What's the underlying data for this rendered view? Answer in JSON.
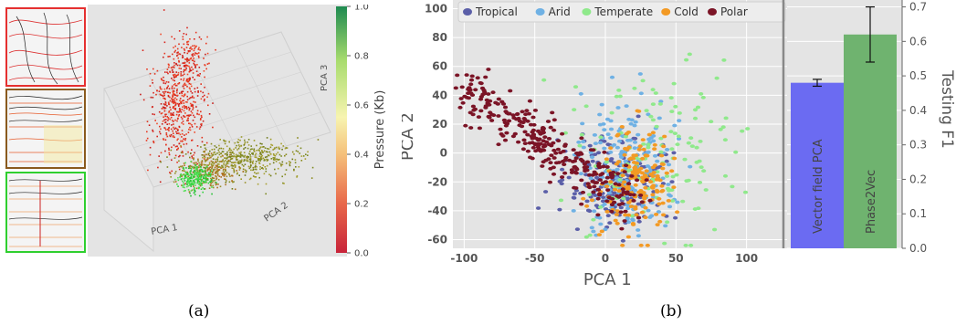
{
  "captions": {
    "a": "(a)",
    "b": "(b)"
  },
  "panel_a": {
    "thumbnails": [
      {
        "border": "#e53030"
      },
      {
        "border": "#8a5a1e"
      },
      {
        "border": "#2fcf2f"
      }
    ],
    "axis_labels": {
      "x": "PCA 1",
      "y": "PCA 2",
      "z": "PCA 3"
    },
    "colorbar": {
      "label": "Pressure (Kb)",
      "ticks": [
        "0.0",
        "0.2",
        "0.4",
        "0.6",
        "0.8",
        "1.0"
      ],
      "colors": [
        "#c8243a",
        "#e8684a",
        "#f5c07a",
        "#f7f4b0",
        "#a8dc6e",
        "#1e8a50"
      ]
    }
  },
  "chart_data": [
    {
      "type": "scatter",
      "title": "",
      "xlabel": "PCA 1",
      "ylabel": "PCA 2",
      "xlim": [
        -108,
        130
      ],
      "ylim": [
        -66,
        106
      ],
      "xticks": [
        "-100",
        "-50",
        "0",
        "50",
        "100"
      ],
      "yticks": [
        "-60",
        "-40",
        "-20",
        "0",
        "20",
        "40",
        "60",
        "80",
        "100"
      ],
      "grid": true,
      "legend": "top",
      "series": [
        {
          "name": "Tropical",
          "color": "#5b5fa8",
          "center": [
            5,
            -20
          ],
          "spread": [
            18,
            18
          ],
          "count": 180
        },
        {
          "name": "Arid",
          "color": "#6fb1e4",
          "center": [
            15,
            -10
          ],
          "spread": [
            16,
            24
          ],
          "count": 200
        },
        {
          "name": "Temperate",
          "color": "#8fe98b",
          "center": [
            35,
            0
          ],
          "spread": [
            30,
            30
          ],
          "count": 130
        },
        {
          "name": "Cold",
          "color": "#f39a24",
          "center": [
            22,
            -18
          ],
          "spread": [
            12,
            18
          ],
          "count": 170
        },
        {
          "name": "Polar",
          "color": "#7b1426",
          "center": [
            -20,
            -22
          ],
          "spread": [
            26,
            16
          ],
          "count": 300
        }
      ]
    },
    {
      "type": "bar",
      "title": "",
      "categories": [
        "Vector field PCA",
        "Phase2Vec"
      ],
      "values": [
        0.48,
        0.62
      ],
      "errors": [
        0.01,
        0.08
      ],
      "colors": [
        "#6b6bf2",
        "#6fb36f"
      ],
      "ylabel": "Testing F1",
      "ylim": [
        0.0,
        0.72
      ],
      "yticks": [
        "0.0",
        "0.1",
        "0.2",
        "0.3",
        "0.4",
        "0.5",
        "0.6",
        "0.7"
      ]
    }
  ]
}
